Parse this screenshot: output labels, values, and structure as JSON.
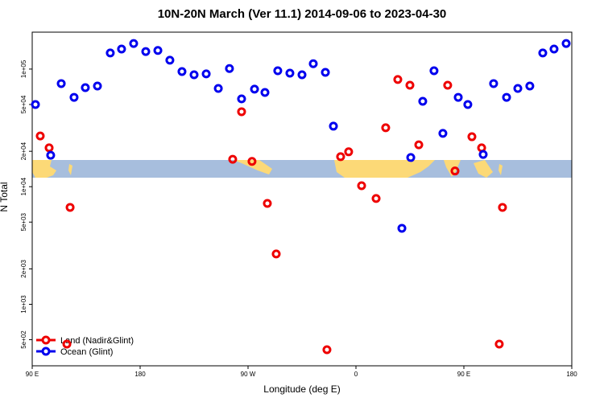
{
  "chart_data": {
    "type": "scatter",
    "title": "10N-20N March (Ver 11.1)   2014-09-06 to 2023-04-30",
    "xlabel": "Longitude (deg E)",
    "ylabel": "N Total",
    "xlim": [
      90,
      540
    ],
    "xticks": [
      {
        "value": 90,
        "label": "90 E"
      },
      180,
      {
        "value": 270,
        "label": "90 W"
      },
      {
        "value": 360,
        "label": "0"
      },
      {
        "value": 450,
        "label": "90 E"
      },
      {
        "value": 540,
        "label": "180"
      }
    ],
    "ylim": [
      300,
      206000
    ],
    "ylog": true,
    "yticks": [
      {
        "value": 500,
        "label": "5e+02"
      },
      {
        "value": 1000,
        "label": "1e+03"
      },
      {
        "value": 2000,
        "label": "2e+03"
      },
      {
        "value": 5000,
        "label": "5e+03"
      },
      {
        "value": 10000,
        "label": "1e+04"
      },
      {
        "value": 20000,
        "label": "2e+04"
      },
      {
        "value": 50000,
        "label": "5e+04"
      },
      {
        "value": 100000,
        "label": "1e+05"
      }
    ],
    "legend": "lower left",
    "series": [
      {
        "name": "Land (Nadir&Glint)",
        "color": "#ee0000",
        "x": [
          96.7,
          104.1,
          121.6,
          118.9,
          257.2,
          264.6,
          273.3,
          286.1,
          293.5,
          335.8,
          347.2,
          353.9,
          364.7,
          376.8,
          384.8,
          394.9,
          405.0,
          412.4,
          436.5,
          442.6,
          456.7,
          464.8,
          479.5,
          482.2
        ],
        "values": [
          27000,
          21400,
          6670,
          459,
          17100,
          43400,
          16400,
          7210,
          2680,
          411,
          18000,
          19800,
          10200,
          7940,
          31700,
          81500,
          72900,
          22700,
          72900,
          13600,
          26600,
          21400,
          459,
          6670
        ]
      },
      {
        "name": "Ocean (Glint)",
        "color": "#0000ee",
        "x": [
          92.7,
          105.4,
          114.2,
          124.9,
          134.3,
          144.4,
          155.1,
          164.5,
          174.6,
          184.7,
          194.8,
          204.8,
          214.9,
          225.0,
          235.1,
          245.2,
          254.5,
          264.6,
          275.4,
          284.1,
          294.8,
          304.9,
          315.0,
          324.4,
          334.5,
          341.2,
          398.3,
          405.7,
          415.7,
          425.1,
          432.5,
          445.3,
          453.3,
          466.1,
          474.8,
          485.6,
          495.0,
          505.0,
          515.8,
          525.2,
          535.3
        ],
        "values": [
          50000,
          18500,
          75300,
          57500,
          69500,
          71800,
          137000,
          148000,
          165000,
          141000,
          144000,
          119000,
          95300,
          89500,
          91000,
          68400,
          101000,
          55800,
          67500,
          63300,
          96800,
          92300,
          89500,
          111000,
          93800,
          32700,
          4430,
          17700,
          53200,
          96800,
          28400,
          57500,
          50000,
          18800,
          75300,
          57500,
          68400,
          71800,
          137000,
          148000,
          165000
        ]
      }
    ]
  }
}
